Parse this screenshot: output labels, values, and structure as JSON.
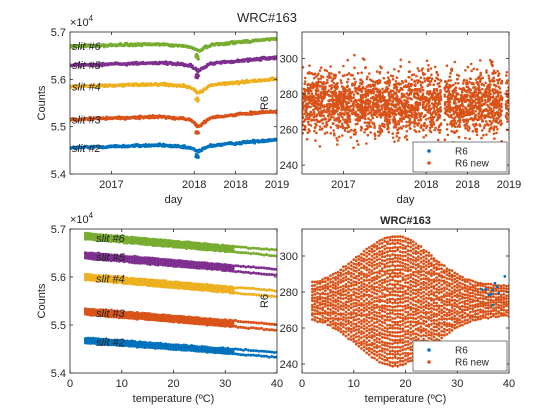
{
  "figure_title": "WRC#163",
  "colors": {
    "blue": "#0072BD",
    "orange": "#D95319",
    "yellow": "#EDB120",
    "purple": "#7E2F8E",
    "green": "#77AC30",
    "axis": "#262626"
  },
  "chart_data": [
    {
      "id": "tl",
      "type": "scatter",
      "title": "",
      "xlabel": "day",
      "ylabel": "Counts",
      "exponent": "×10",
      "exponent_power": "4",
      "xlim": [
        2016.5,
        2019.0
      ],
      "ylim": [
        5.4,
        5.7
      ],
      "xticks": [
        2017,
        2018,
        2018.5,
        2019
      ],
      "xtick_labels": [
        "2017",
        "2018",
        "2018",
        "2019"
      ],
      "yticks": [
        5.4,
        5.5,
        5.6,
        5.7
      ],
      "ytick_labels": [
        "5.4",
        "5.5",
        "5.6",
        "5.7"
      ],
      "series": [
        {
          "name": "slit #2",
          "color": "blue",
          "x": [
            2016.5,
            2016.8,
            2017.2,
            2017.6,
            2017.95,
            2018.05,
            2018.2,
            2018.5,
            2018.8,
            2019.0
          ],
          "y": [
            5.455,
            5.457,
            5.459,
            5.461,
            5.455,
            5.448,
            5.46,
            5.465,
            5.47,
            5.473
          ]
        },
        {
          "name": "slit #3",
          "color": "orange",
          "x": [
            2016.5,
            2016.8,
            2017.2,
            2017.6,
            2017.95,
            2018.05,
            2018.2,
            2018.5,
            2018.8,
            2019.0
          ],
          "y": [
            5.515,
            5.517,
            5.519,
            5.521,
            5.515,
            5.5,
            5.52,
            5.525,
            5.53,
            5.532
          ]
        },
        {
          "name": "slit #4",
          "color": "yellow",
          "x": [
            2016.5,
            2016.8,
            2017.2,
            2017.6,
            2017.95,
            2018.05,
            2018.2,
            2018.5,
            2018.8,
            2019.0
          ],
          "y": [
            5.585,
            5.586,
            5.588,
            5.59,
            5.585,
            5.57,
            5.588,
            5.593,
            5.598,
            5.601
          ]
        },
        {
          "name": "slit #5",
          "color": "purple",
          "x": [
            2016.5,
            2016.8,
            2017.2,
            2017.6,
            2017.95,
            2018.05,
            2018.2,
            2018.5,
            2018.8,
            2019.0
          ],
          "y": [
            5.63,
            5.631,
            5.633,
            5.635,
            5.63,
            5.617,
            5.634,
            5.638,
            5.643,
            5.646
          ]
        },
        {
          "name": "slit #6",
          "color": "green",
          "x": [
            2016.5,
            2016.8,
            2017.2,
            2017.6,
            2017.95,
            2018.05,
            2018.2,
            2018.5,
            2018.8,
            2019.0
          ],
          "y": [
            5.67,
            5.671,
            5.673,
            5.674,
            5.669,
            5.66,
            5.673,
            5.678,
            5.683,
            5.686
          ]
        }
      ]
    },
    {
      "id": "tr",
      "type": "scatter",
      "title": "",
      "xlabel": "day",
      "ylabel": "R6",
      "xlim": [
        2016.5,
        2019.0
      ],
      "ylim": [
        235,
        315
      ],
      "xticks": [
        2017,
        2018,
        2018.5,
        2019
      ],
      "xtick_labels": [
        "2017",
        "2018",
        "2018",
        "2019"
      ],
      "yticks": [
        240,
        260,
        280,
        300
      ],
      "ytick_labels": [
        "240",
        "260",
        "280",
        "300"
      ],
      "legend": "bottom-right",
      "series": [
        {
          "name": "R6",
          "color": "blue",
          "x_range": [
            2016.5,
            2019.0
          ],
          "y_range": [
            246,
            303
          ]
        },
        {
          "name": "R6 new",
          "color": "orange",
          "x_range": [
            2016.5,
            2019.0
          ],
          "y_range": [
            240,
            308
          ],
          "gaps": [
            [
              2018.18,
              2018.22
            ],
            [
              2018.92,
              2018.96
            ]
          ]
        }
      ]
    },
    {
      "id": "bl",
      "type": "scatter",
      "title": "",
      "xlabel": "temperature (ºC)",
      "ylabel": "Counts",
      "exponent": "×10",
      "exponent_power": "4",
      "xlim": [
        0,
        40
      ],
      "ylim": [
        5.4,
        5.7
      ],
      "xticks": [
        0,
        10,
        20,
        30,
        40
      ],
      "xtick_labels": [
        "0",
        "10",
        "20",
        "30",
        "40"
      ],
      "yticks": [
        5.4,
        5.5,
        5.6,
        5.7
      ],
      "ytick_labels": [
        "5.4",
        "5.5",
        "5.6",
        "5.7"
      ],
      "series": [
        {
          "name": "slit #2",
          "color": "blue",
          "x_range": [
            3,
            40
          ],
          "y_start": 5.468,
          "y_end": 5.438,
          "spread": 0.01
        },
        {
          "name": "slit #3",
          "color": "orange",
          "x_range": [
            3,
            40
          ],
          "y_start": 5.528,
          "y_end": 5.495,
          "spread": 0.012
        },
        {
          "name": "slit #4",
          "color": "yellow",
          "x_range": [
            3,
            40
          ],
          "y_start": 5.6,
          "y_end": 5.565,
          "spread": 0.012
        },
        {
          "name": "slit #5",
          "color": "purple",
          "x_range": [
            3,
            40
          ],
          "y_start": 5.645,
          "y_end": 5.61,
          "spread": 0.012
        },
        {
          "name": "slit #6",
          "color": "green",
          "x_range": [
            3,
            40
          ],
          "y_start": 5.685,
          "y_end": 5.65,
          "spread": 0.012
        }
      ]
    },
    {
      "id": "br",
      "type": "scatter",
      "title": "WRC#163",
      "xlabel": "temperature (ºC)",
      "ylabel": "R6",
      "xlim": [
        0,
        40
      ],
      "ylim": [
        235,
        315
      ],
      "xticks": [
        0,
        10,
        20,
        30,
        40
      ],
      "xtick_labels": [
        "0",
        "10",
        "20",
        "30",
        "40"
      ],
      "yticks": [
        240,
        260,
        280,
        300
      ],
      "ytick_labels": [
        "240",
        "260",
        "280",
        "300"
      ],
      "legend": "bottom-right",
      "series": [
        {
          "name": "R6",
          "color": "blue",
          "x_range": [
            2,
            40
          ],
          "y_center": 275,
          "y_halfwidth_max": 22
        },
        {
          "name": "R6 new",
          "color": "orange",
          "x_range": [
            2,
            40
          ],
          "y_center": 275,
          "y_halfwidth_max": 36
        }
      ]
    }
  ]
}
